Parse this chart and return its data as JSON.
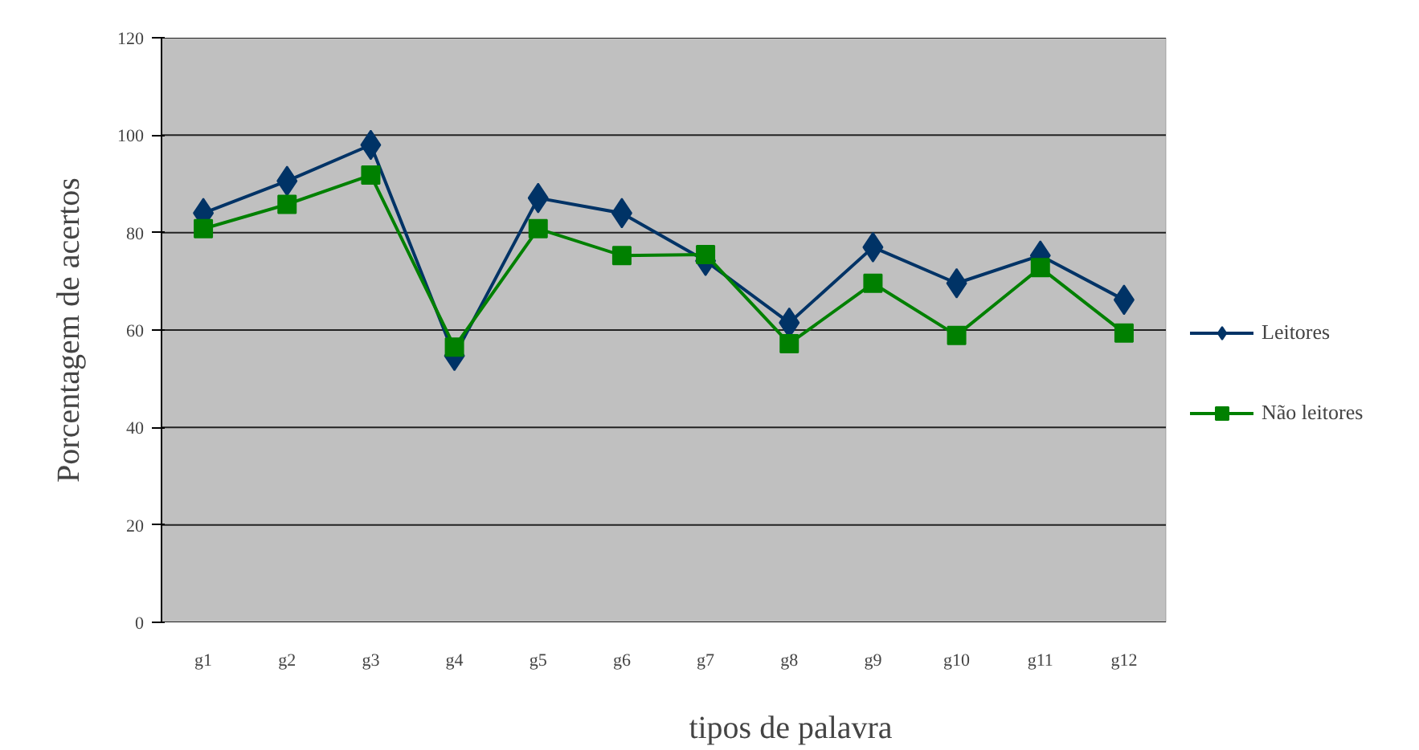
{
  "chart_data": {
    "type": "line",
    "xlabel": "tipos de palavra",
    "ylabel": "Porcentagem de acertos",
    "categories": [
      "g1",
      "g2",
      "g3",
      "g4",
      "g5",
      "g6",
      "g7",
      "g8",
      "g9",
      "g10",
      "g11",
      "g12"
    ],
    "ylim": [
      0,
      120
    ],
    "yticks": [
      0,
      20,
      40,
      60,
      80,
      100,
      120
    ],
    "grid": "y",
    "legend": "right",
    "series": [
      {
        "name": "Leitores",
        "color": "#003366",
        "marker": "diamond",
        "values": [
          84,
          90.6,
          98,
          54.7,
          87.1,
          84,
          74.2,
          61.5,
          77,
          69.6,
          75.3,
          66.2
        ]
      },
      {
        "name": "Não leitores",
        "color": "#008000",
        "marker": "square",
        "values": [
          80.8,
          85.8,
          91.8,
          56.5,
          80.8,
          75.3,
          75.5,
          57.2,
          69.6,
          58.9,
          72.8,
          59.4
        ]
      }
    ]
  }
}
